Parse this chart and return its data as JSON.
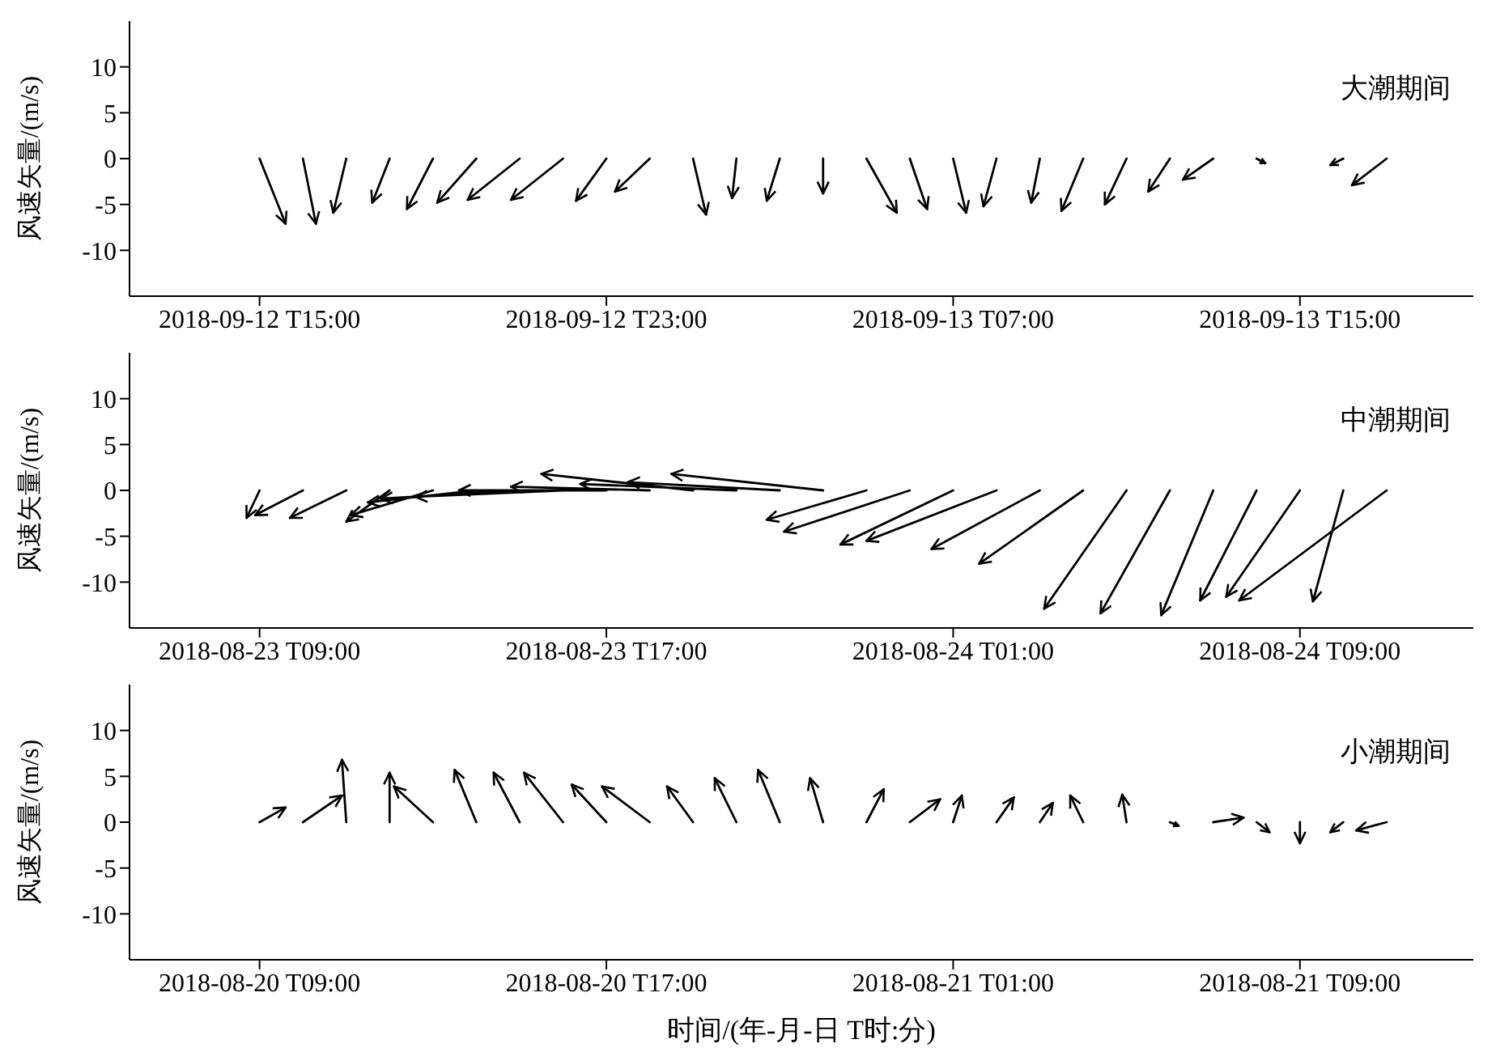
{
  "chart_data": [
    {
      "type": "line",
      "ylabel": "风速矢量/(m/s)",
      "annotations": [
        "大潮期间"
      ],
      "xlim": [
        "2018-09-12T12:00",
        "2018-09-13T19:00"
      ],
      "xticks": [
        {
          "value": "2018-09-12T15:00",
          "label": "2018-09-12 T15:00"
        },
        {
          "value": "2018-09-12T23:00",
          "label": "2018-09-12 T23:00"
        },
        {
          "value": "2018-09-13T07:00",
          "label": "2018-09-13 T07:00"
        },
        {
          "value": "2018-09-13T15:00",
          "label": "2018-09-13 T15:00"
        }
      ],
      "ylim": [
        -15,
        15
      ],
      "yticks": [
        -10,
        -5,
        0,
        5,
        10
      ],
      "series": [
        {
          "color": "#000000",
          "x": [
            "2018-09-12T15:00",
            "2018-09-12T15:36",
            null,
            "2018-09-12T16:00",
            "2018-09-12T16:18",
            null,
            "2018-09-12T17:00",
            "2018-09-12T16:42",
            null,
            "2018-09-12T18:00",
            "2018-09-12T17:36",
            null,
            "2018-09-12T19:00",
            "2018-09-12T18:24",
            null,
            "2018-09-12T20:00",
            "2018-09-12T19:06",
            null,
            "2018-09-12T21:00",
            "2018-09-12T19:48",
            null,
            "2018-09-12T22:00",
            "2018-09-12T20:48",
            null,
            "2018-09-12T23:00",
            "2018-09-12T22:18",
            null,
            "2018-09-13T00:00",
            "2018-09-12T23:12",
            null,
            "2018-09-13T01:00",
            "2018-09-13T01:18",
            null,
            "2018-09-13T02:00",
            "2018-09-13T01:54",
            null,
            "2018-09-13T03:00",
            "2018-09-13T02:42",
            null,
            "2018-09-13T04:00",
            "2018-09-13T04:00",
            null,
            "2018-09-13T05:00",
            "2018-09-13T05:42",
            null,
            "2018-09-13T06:00",
            "2018-09-13T06:24",
            null,
            "2018-09-13T07:00",
            "2018-09-13T07:18",
            null,
            "2018-09-13T08:00",
            "2018-09-13T07:42",
            null,
            "2018-09-13T09:00",
            "2018-09-13T08:48",
            null,
            "2018-09-13T10:00",
            "2018-09-13T09:30",
            null,
            "2018-09-13T11:00",
            "2018-09-13T10:30",
            null,
            "2018-09-13T12:00",
            "2018-09-13T11:30",
            null,
            "2018-09-13T13:00",
            "2018-09-13T12:18",
            null,
            "2018-09-13T14:00",
            "2018-09-13T14:12",
            null,
            "2018-09-13T16:00",
            "2018-09-13T15:42",
            null,
            "2018-09-13T17:00",
            "2018-09-13T16:12",
            null
          ],
          "values": [
            0,
            -7.1,
            null,
            0,
            -7.1,
            null,
            0,
            -5.9,
            null,
            0,
            -4.8,
            null,
            0,
            -5.5,
            null,
            0,
            -4.8,
            null,
            0,
            -4.5,
            null,
            0,
            -4.5,
            null,
            0,
            -4.6,
            null,
            0,
            -3.6,
            null,
            0,
            -6.1,
            null,
            0,
            -4.3,
            null,
            0,
            -4.6,
            null,
            0,
            -3.8,
            null,
            0,
            -5.9,
            null,
            0,
            -5.5,
            null,
            0,
            -5.9,
            null,
            0,
            -5.2,
            null,
            0,
            -4.8,
            null,
            0,
            -5.7,
            null,
            0,
            -5.0,
            null,
            0,
            -3.6,
            null,
            0,
            -2.3,
            null,
            0,
            -0.5,
            null,
            0,
            -0.7,
            null,
            0,
            -2.9,
            null
          ]
        }
      ]
    },
    {
      "type": "line",
      "ylabel": "风速矢量/(m/s)",
      "annotations": [
        "中潮期间"
      ],
      "xlim": [
        "2018-08-23T06:00",
        "2018-08-24T13:00"
      ],
      "xticks": [
        {
          "value": "2018-08-23T09:00",
          "label": "2018-08-23 T09:00"
        },
        {
          "value": "2018-08-23T17:00",
          "label": "2018-08-23 T17:00"
        },
        {
          "value": "2018-08-24T01:00",
          "label": "2018-08-24 T01:00"
        },
        {
          "value": "2018-08-24T09:00",
          "label": "2018-08-24 T09:00"
        }
      ],
      "ylim": [
        -15,
        15
      ],
      "yticks": [
        -10,
        -5,
        0,
        5,
        10
      ],
      "series": [
        {
          "color": "#000000",
          "x": [
            "2018-08-23T09:00",
            "2018-08-23T08:42",
            null,
            "2018-08-23T10:00",
            "2018-08-23T08:54",
            null,
            "2018-08-23T11:00",
            "2018-08-23T09:42",
            null,
            "2018-08-23T12:00",
            "2018-08-23T11:00",
            null,
            "2018-08-23T13:00",
            "2018-08-23T11:06",
            null,
            "2018-08-23T14:00",
            "2018-08-23T11:30",
            null,
            "2018-08-23T15:00",
            "2018-08-23T11:48",
            null,
            "2018-08-23T16:00",
            "2018-08-23T12:36",
            null,
            "2018-08-23T17:00",
            "2018-08-23T13:36",
            null,
            "2018-08-23T18:00",
            "2018-08-23T14:48",
            null,
            "2018-08-23T19:00",
            "2018-08-23T15:30",
            null,
            "2018-08-23T20:00",
            "2018-08-23T16:24",
            null,
            "2018-08-23T21:00",
            "2018-08-23T17:30",
            null,
            "2018-08-23T22:00",
            "2018-08-23T18:30",
            null,
            "2018-08-23T23:00",
            "2018-08-23T20:42",
            null,
            "2018-08-24T00:00",
            "2018-08-23T21:06",
            null,
            "2018-08-24T01:00",
            "2018-08-23T22:24",
            null,
            "2018-08-24T02:00",
            "2018-08-23T23:00",
            null,
            "2018-08-24T03:00",
            "2018-08-24T00:30",
            null,
            "2018-08-24T04:00",
            "2018-08-24T01:36",
            null,
            "2018-08-24T05:00",
            "2018-08-24T03:06",
            null,
            "2018-08-24T06:00",
            "2018-08-24T04:24",
            null,
            "2018-08-24T07:00",
            "2018-08-24T05:48",
            null,
            "2018-08-24T08:00",
            "2018-08-24T06:42",
            null,
            "2018-08-24T09:00",
            "2018-08-24T07:18",
            null,
            "2018-08-24T10:00",
            "2018-08-24T09:18",
            null,
            "2018-08-24T11:00",
            "2018-08-24T07:36",
            null
          ],
          "values": [
            0,
            -3.0,
            null,
            0,
            -2.7,
            null,
            0,
            -3.0,
            null,
            0,
            -3.4,
            null,
            0,
            -2.7,
            null,
            0,
            -1.3,
            null,
            0,
            -0.9,
            null,
            0,
            -0.7,
            null,
            0,
            0,
            null,
            0,
            0.4,
            null,
            0,
            1.8,
            null,
            0,
            0.7,
            null,
            0,
            0.9,
            null,
            0,
            1.8,
            null,
            0,
            -3.2,
            null,
            0,
            -4.5,
            null,
            0,
            -5.9,
            null,
            0,
            -5.5,
            null,
            0,
            -6.4,
            null,
            0,
            -8.0,
            null,
            0,
            -12.9,
            null,
            0,
            -13.4,
            null,
            0,
            -13.6,
            null,
            0,
            -12.0,
            null,
            0,
            -11.6,
            null,
            0,
            -12.1,
            null,
            0,
            -12.0,
            null
          ]
        }
      ]
    },
    {
      "type": "line",
      "ylabel": "风速矢量/(m/s)",
      "xlabel": "时间/(年-月-日 T时:分)",
      "annotations": [
        "小潮期间"
      ],
      "xlim": [
        "2018-08-20T06:00",
        "2018-08-21T13:00"
      ],
      "xticks": [
        {
          "value": "2018-08-20T09:00",
          "label": "2018-08-20 T09:00"
        },
        {
          "value": "2018-08-20T17:00",
          "label": "2018-08-20 T17:00"
        },
        {
          "value": "2018-08-21T01:00",
          "label": "2018-08-21 T01:00"
        },
        {
          "value": "2018-08-21T09:00",
          "label": "2018-08-21 T09:00"
        }
      ],
      "ylim": [
        -15,
        15
      ],
      "yticks": [
        -10,
        -5,
        0,
        5,
        10
      ],
      "series": [
        {
          "color": "#000000",
          "x": [
            "2018-08-20T09:00",
            "2018-08-20T09:36",
            null,
            "2018-08-20T10:00",
            "2018-08-20T10:54",
            null,
            "2018-08-20T11:00",
            "2018-08-20T10:54",
            null,
            "2018-08-20T12:00",
            "2018-08-20T12:00",
            null,
            "2018-08-20T13:00",
            "2018-08-20T12:06",
            null,
            "2018-08-20T14:00",
            "2018-08-20T13:30",
            null,
            "2018-08-20T15:00",
            "2018-08-20T14:24",
            null,
            "2018-08-20T16:00",
            "2018-08-20T15:06",
            null,
            "2018-08-20T17:00",
            "2018-08-20T16:12",
            null,
            "2018-08-20T18:00",
            "2018-08-20T16:54",
            null,
            "2018-08-20T19:00",
            "2018-08-20T18:24",
            null,
            "2018-08-20T20:00",
            "2018-08-20T19:30",
            null,
            "2018-08-20T21:00",
            "2018-08-20T20:30",
            null,
            "2018-08-20T22:00",
            "2018-08-20T21:42",
            null,
            "2018-08-20T23:00",
            "2018-08-20T23:24",
            null,
            "2018-08-21T00:00",
            "2018-08-21T00:42",
            null,
            "2018-08-21T01:00",
            "2018-08-21T01:12",
            null,
            "2018-08-21T02:00",
            "2018-08-21T02:24",
            null,
            "2018-08-21T03:00",
            "2018-08-21T03:18",
            null,
            "2018-08-21T04:00",
            "2018-08-21T03:42",
            null,
            "2018-08-21T05:00",
            "2018-08-21T04:54",
            null,
            "2018-08-21T06:00",
            "2018-08-21T06:12",
            null,
            "2018-08-21T07:00",
            "2018-08-21T07:42",
            null,
            "2018-08-21T08:00",
            "2018-08-21T08:18",
            null,
            "2018-08-21T09:00",
            "2018-08-21T09:00",
            null,
            "2018-08-21T10:00",
            "2018-08-21T09:42",
            null,
            "2018-08-21T11:00",
            "2018-08-21T10:18",
            null
          ],
          "values": [
            0,
            1.6,
            null,
            0,
            2.9,
            null,
            0,
            6.8,
            null,
            0,
            5.4,
            null,
            0,
            3.9,
            null,
            0,
            5.7,
            null,
            0,
            5.4,
            null,
            0,
            5.4,
            null,
            0,
            4.1,
            null,
            0,
            3.9,
            null,
            0,
            3.9,
            null,
            0,
            4.8,
            null,
            0,
            5.7,
            null,
            0,
            4.8,
            null,
            0,
            3.6,
            null,
            0,
            2.5,
            null,
            0,
            2.9,
            null,
            0,
            2.7,
            null,
            0,
            2.1,
            null,
            0,
            2.9,
            null,
            0,
            3.0,
            null,
            0,
            -0.4,
            null,
            0,
            0.5,
            null,
            0,
            -1.1,
            null,
            0,
            -2.3,
            null,
            0,
            -1.1,
            null,
            0,
            -0.9,
            null
          ]
        }
      ]
    }
  ]
}
